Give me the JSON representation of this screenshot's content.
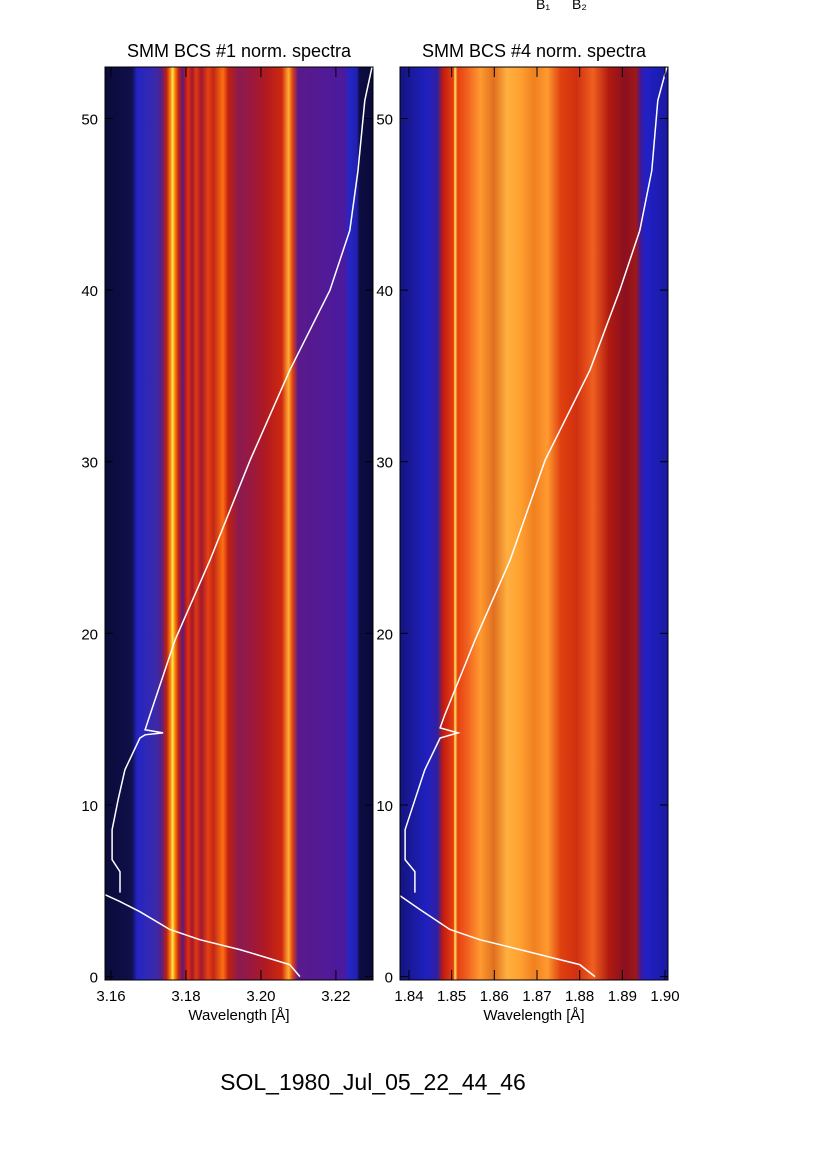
{
  "figure": {
    "label": "SOL_1980_Jul_05_22_44_46",
    "annotations": [
      "B₁",
      "B₂"
    ]
  },
  "chart_data": [
    {
      "type": "line",
      "title": "SMM BCS #1 norm. spectra",
      "x_label": "Wavelength [Å]",
      "color": "#ffffff",
      "x": [
        3.2104,
        3.2077,
        3.1944,
        3.1837,
        3.1757,
        3.1677,
        3.1624,
        3.1584,
        null,
        3.1624,
        3.1624,
        3.1603,
        3.1603,
        3.1619,
        3.1637,
        3.1677,
        3.1691,
        3.1739,
        3.1691,
        3.1704,
        3.1771,
        3.1864,
        3.1971,
        3.2077,
        3.2184,
        3.2237,
        3.2259,
        3.2277,
        3.2296
      ],
      "values": [
        0,
        0.7,
        1.57,
        2.15,
        2.74,
        3.78,
        4.37,
        4.77,
        null,
        4.89,
        6.11,
        6.81,
        8.56,
        10.3,
        12.05,
        13.9,
        14.09,
        14.2,
        14.38,
        15.25,
        19.62,
        24.27,
        30.09,
        35.33,
        39.99,
        43.48,
        46.97,
        51.05,
        52.97
      ],
      "xlim": [
        3.1584,
        3.2299
      ],
      "ylim": [
        -0.2,
        53
      ],
      "xticks": [
        3.16,
        3.18,
        {
          "value": 3.2,
          "label": "3.20"
        },
        3.22
      ],
      "yticks": [
        0,
        10,
        20,
        30,
        40,
        50
      ]
    },
    {
      "type": "line",
      "title": "SMM BCS #4 norm. spectra",
      "x_label": "Wavelength [Å]",
      "color": "#ffffff",
      "x": [
        1.8836,
        1.88,
        1.866,
        1.8566,
        1.8496,
        1.8426,
        1.8379,
        null,
        1.8414,
        1.8414,
        1.8391,
        1.8391,
        1.8414,
        1.8437,
        1.8473,
        1.8515,
        1.8473,
        1.8484,
        1.8555,
        1.8637,
        1.8719,
        1.8824,
        1.8894,
        1.8941,
        1.8969,
        1.8983,
        1.9004
      ],
      "values": [
        0,
        0.7,
        1.57,
        2.15,
        2.74,
        3.9,
        4.71,
        null,
        4.89,
        6.11,
        6.81,
        8.56,
        10.3,
        12.05,
        13.9,
        14.2,
        14.49,
        15.25,
        19.62,
        24.27,
        30.09,
        35.33,
        39.99,
        43.48,
        46.97,
        51.05,
        52.97
      ],
      "xlim": [
        1.8379,
        1.9007
      ],
      "ylim": [
        -0.2,
        53
      ],
      "xticks": [
        1.84,
        1.85,
        1.86,
        1.87,
        1.88,
        1.89,
        {
          "value": 1.9,
          "label": "1.90"
        }
      ],
      "yticks": [
        0,
        10,
        20,
        30,
        40,
        50
      ]
    }
  ]
}
